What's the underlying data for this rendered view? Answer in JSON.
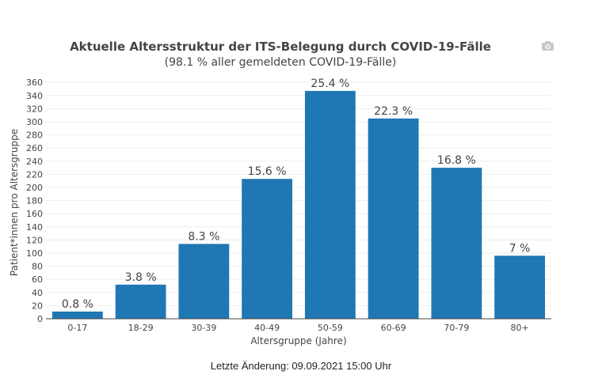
{
  "chart_data": {
    "type": "bar",
    "title": "Aktuelle Altersstruktur der ITS-Belegung durch COVID-19-Fälle",
    "subtitle": "(98.1 % aller gemeldeten COVID-19-Fälle)",
    "xlabel": "Altersgruppe (Jahre)",
    "ylabel": "Patient*innen pro Altersgruppe",
    "categories": [
      "0-17",
      "18-29",
      "30-39",
      "40-49",
      "50-59",
      "60-69",
      "70-79",
      "80+"
    ],
    "values": [
      11,
      52,
      114,
      213,
      347,
      305,
      230,
      96
    ],
    "data_labels": [
      "0.8 %",
      "3.8 %",
      "8.3 %",
      "15.6 %",
      "25.4 %",
      "22.3 %",
      "16.8 %",
      "7 %"
    ],
    "ylim": [
      0,
      365
    ],
    "yticks": [
      0,
      20,
      40,
      60,
      80,
      100,
      120,
      140,
      160,
      180,
      200,
      220,
      240,
      260,
      280,
      300,
      320,
      340,
      360
    ],
    "bar_color": "#1f77b4",
    "grid": true
  },
  "footer": {
    "last_change": "Letzte Änderung: 09.09.2021 15:00 Uhr"
  }
}
